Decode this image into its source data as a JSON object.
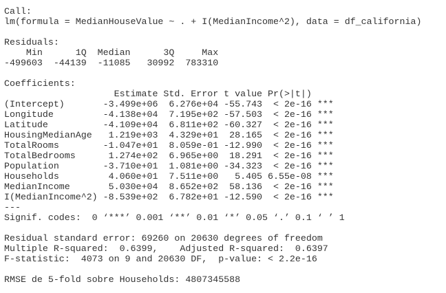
{
  "blocks": [
    [
      "Call:",
      "lm(formula = MedianHouseValue ~ . + I(MedianIncome^2), data = df_california)"
    ],
    [
      "Residuals:",
      "    Min      1Q  Median      3Q     Max ",
      "-499603  -44139  -11085   30992  783310 "
    ],
    [
      "Coefficients:",
      "                    Estimate Std. Error t value Pr(>|t|)    ",
      "(Intercept)       -3.499e+06  6.276e+04 -55.743  < 2e-16 ***",
      "Longitude         -4.138e+04  7.195e+02 -57.503  < 2e-16 ***",
      "Latitude          -4.109e+04  6.811e+02 -60.327  < 2e-16 ***",
      "HousingMedianAge   1.219e+03  4.329e+01  28.165  < 2e-16 ***",
      "TotalRooms        -1.047e+01  8.059e-01 -12.990  < 2e-16 ***",
      "TotalBedrooms      1.274e+02  6.965e+00  18.291  < 2e-16 ***",
      "Population        -3.710e+01  1.081e+00 -34.323  < 2e-16 ***",
      "Households         4.060e+01  7.511e+00   5.405 6.55e-08 ***",
      "MedianIncome       5.030e+04  8.652e+02  58.136  < 2e-16 ***",
      "I(MedianIncome^2) -8.539e+02  6.782e+01 -12.590  < 2e-16 ***",
      "---",
      "Signif. codes:  0 ‘***’ 0.001 ‘**’ 0.01 ‘*’ 0.05 ‘.’ 0.1 ‘ ’ 1"
    ],
    [
      "Residual standard error: 69260 on 20630 degrees of freedom",
      "Multiple R-squared:  0.6399,    Adjusted R-squared:  0.6397 ",
      "F-statistic:  4073 on 9 and 20630 DF,  p-value: < 2.2e-16"
    ],
    [
      "RMSE de 5-fold sobre Households: 4807345588"
    ]
  ]
}
